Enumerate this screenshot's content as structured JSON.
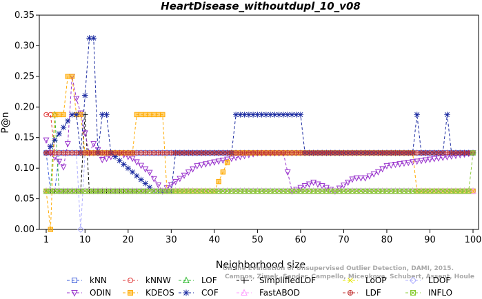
{
  "chart_data": {
    "type": "line",
    "title": "HeartDisease_withoutdupl_10_v08",
    "xlabel": "Neighborhood size",
    "ylabel": "P@n",
    "xlim": [
      1,
      100
    ],
    "ylim": [
      0,
      0.35
    ],
    "x_ticks": [
      1,
      10,
      20,
      30,
      40,
      50,
      60,
      70,
      80,
      90,
      100
    ],
    "y_ticks": [
      0.0,
      0.05,
      0.1,
      0.15,
      0.2,
      0.25,
      0.3,
      0.35
    ],
    "y_tick_labels": [
      "0.00",
      "0.05",
      "0.10",
      "0.15",
      "0.20",
      "0.25",
      "0.30",
      "0.35"
    ],
    "grid": false,
    "legend_position": "bottom",
    "credit": [
      "Campos, Zimek, Sander, Campello, Micenkova, Schubert, Assent, Houle",
      "On the Evaluation of Unsupervised Outlier Detection, DAMI, 2015."
    ],
    "series": [
      {
        "name": "kNN",
        "color": "#3a5bd9",
        "marker": "square",
        "segments": [
          [
            1,
            0.125
          ],
          [
            2,
            0.0625
          ],
          [
            3,
            0.0625
          ],
          [
            4,
            0.125
          ],
          [
            100,
            0.125
          ]
        ],
        "alt": [
          [
            4,
            0.0625
          ],
          [
            44,
            0.0625
          ],
          [
            45,
            0.0625
          ],
          [
            100,
            0.0625
          ]
        ]
      },
      {
        "name": "kNNW",
        "color": "#e03c3c",
        "marker": "circle",
        "segments": [
          [
            1,
            0.1875
          ],
          [
            2,
            0.1875
          ],
          [
            3,
            0.125
          ],
          [
            100,
            0.125
          ]
        ]
      },
      {
        "name": "LOF",
        "color": "#33bb33",
        "marker": "triangle",
        "segments": [
          [
            1,
            0.0625
          ],
          [
            2,
            0.0625
          ],
          [
            3,
            0.1875
          ],
          [
            4,
            0.0625
          ],
          [
            100,
            0.0625
          ]
        ]
      },
      {
        "name": "SimplifiedLOF",
        "color": "#000000",
        "marker": "plus",
        "segments": [
          [
            1,
            0.0625
          ],
          [
            9,
            0.0625
          ],
          [
            10,
            0.1875
          ],
          [
            11,
            0.0625
          ],
          [
            24,
            0.0625
          ]
        ]
      },
      {
        "name": "LoOP",
        "color": "#e5e500",
        "marker": "x",
        "segments": [
          [
            1,
            0.0625
          ],
          [
            100,
            0.0625
          ]
        ]
      },
      {
        "name": "LDOF",
        "color": "#b0b0ff",
        "marker": "diamond",
        "segments": [
          [
            1,
            0.125
          ],
          [
            8,
            0.125
          ],
          [
            9,
            0.0
          ],
          [
            10,
            0.125
          ],
          [
            100,
            0.125
          ]
        ]
      },
      {
        "name": "ODIN",
        "color": "#9933cc",
        "marker": "tri-down",
        "segments": [
          [
            1,
            0.146
          ],
          [
            2,
            0.125
          ],
          [
            4,
            0.111
          ],
          [
            5,
            0.102
          ],
          [
            6,
            0.14
          ],
          [
            7,
            0.25
          ],
          [
            8,
            0.214
          ],
          [
            9,
            0.19
          ],
          [
            11,
            0.125
          ],
          [
            12,
            0.14
          ],
          [
            13,
            0.13
          ],
          [
            14,
            0.114
          ],
          [
            15,
            0.116
          ],
          [
            18,
            0.125
          ],
          [
            21,
            0.116
          ],
          [
            25,
            0.093
          ],
          [
            28,
            0.0625
          ],
          [
            36,
            0.104
          ],
          [
            50,
            0.125
          ],
          [
            56,
            0.125
          ],
          [
            58,
            0.0625
          ],
          [
            63,
            0.077
          ],
          [
            68,
            0.0625
          ],
          [
            71,
            0.077
          ],
          [
            72,
            0.082
          ],
          [
            73,
            0.084
          ],
          [
            75,
            0.084
          ],
          [
            78,
            0.094
          ],
          [
            80,
            0.104
          ],
          [
            100,
            0.125
          ]
        ]
      },
      {
        "name": "KDEOS",
        "color": "#ffaa00",
        "marker": "square-fill",
        "segments": [
          [
            1,
            0.0625
          ],
          [
            2,
            0.0
          ],
          [
            3,
            0.1875
          ],
          [
            5,
            0.1875
          ],
          [
            6,
            0.25
          ],
          [
            7,
            0.25
          ],
          [
            8,
            0.1875
          ],
          [
            9,
            0.1875
          ],
          [
            10,
            0.125
          ],
          [
            21,
            0.125
          ],
          [
            22,
            0.1875
          ],
          [
            28,
            0.1875
          ],
          [
            29,
            0.0625
          ],
          [
            40,
            0.0625
          ],
          [
            44,
            0.125
          ],
          [
            86,
            0.125
          ],
          [
            87,
            0.0625
          ],
          [
            100,
            0.0625
          ]
        ]
      },
      {
        "name": "COF",
        "color": "#1a2aa0",
        "marker": "star",
        "segments": [
          [
            1,
            0.125
          ],
          [
            7,
            0.1875
          ],
          [
            8,
            0.1875
          ],
          [
            9,
            0.125
          ],
          [
            11,
            0.3125
          ],
          [
            12,
            0.3125
          ],
          [
            13,
            0.125
          ],
          [
            14,
            0.1875
          ],
          [
            15,
            0.1875
          ],
          [
            16,
            0.125
          ],
          [
            26,
            0.0625
          ],
          [
            30,
            0.0625
          ],
          [
            31,
            0.125
          ],
          [
            44,
            0.125
          ],
          [
            45,
            0.1875
          ],
          [
            60,
            0.1875
          ],
          [
            61,
            0.125
          ],
          [
            86,
            0.125
          ],
          [
            87,
            0.1875
          ],
          [
            88,
            0.125
          ],
          [
            93,
            0.125
          ],
          [
            94,
            0.1875
          ],
          [
            95,
            0.125
          ],
          [
            100,
            0.125
          ]
        ]
      },
      {
        "name": "FastABOD",
        "color": "#ff99ff",
        "marker": "tri-up-open",
        "segments": [
          [
            1,
            0.0625
          ],
          [
            100,
            0.0625
          ]
        ]
      },
      {
        "name": "LDF",
        "color": "#c03030",
        "marker": "circle-plus",
        "segments": [
          [
            1,
            0.125
          ],
          [
            100,
            0.125
          ]
        ]
      },
      {
        "name": "INFLO",
        "color": "#88cc33",
        "marker": "square-x",
        "segments": [
          [
            1,
            0.0625
          ],
          [
            99,
            0.0625
          ],
          [
            100,
            0.125
          ]
        ]
      }
    ]
  }
}
